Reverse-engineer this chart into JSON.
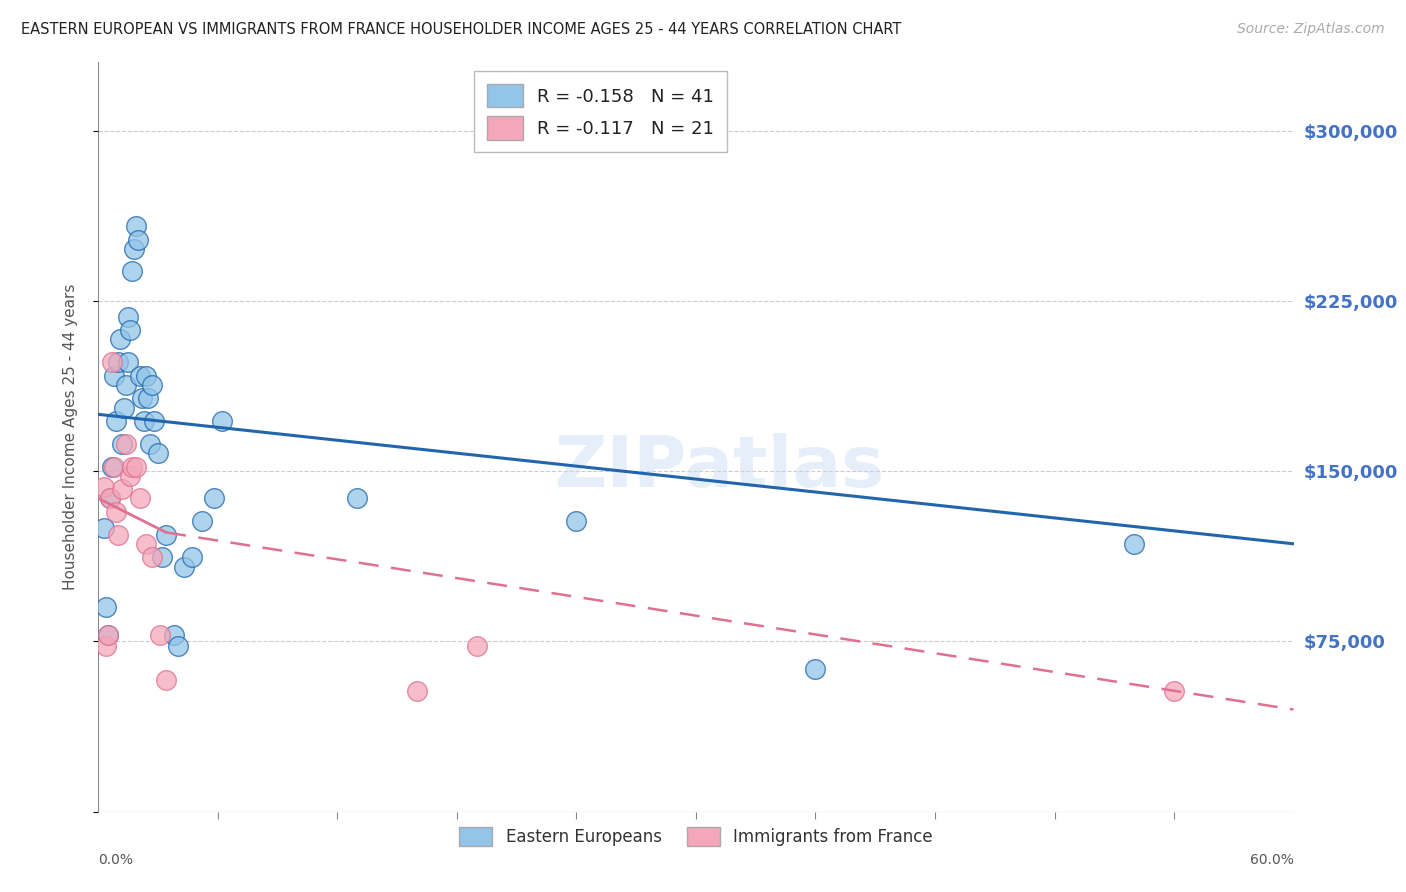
{
  "title": "EASTERN EUROPEAN VS IMMIGRANTS FROM FRANCE HOUSEHOLDER INCOME AGES 25 - 44 YEARS CORRELATION CHART",
  "source": "Source: ZipAtlas.com",
  "ylabel": "Householder Income Ages 25 - 44 years",
  "yticks": [
    0,
    75000,
    150000,
    225000,
    300000
  ],
  "ytick_labels": [
    "",
    "$75,000",
    "$150,000",
    "$225,000",
    "$300,000"
  ],
  "xlim": [
    0.0,
    0.6
  ],
  "ylim": [
    0,
    330000
  ],
  "blue_scatter_x": [
    0.003,
    0.004,
    0.005,
    0.006,
    0.007,
    0.008,
    0.009,
    0.01,
    0.011,
    0.012,
    0.013,
    0.014,
    0.015,
    0.015,
    0.016,
    0.017,
    0.018,
    0.019,
    0.02,
    0.021,
    0.022,
    0.023,
    0.024,
    0.025,
    0.026,
    0.027,
    0.028,
    0.03,
    0.032,
    0.034,
    0.038,
    0.04,
    0.043,
    0.047,
    0.052,
    0.058,
    0.062,
    0.13,
    0.24,
    0.36,
    0.52
  ],
  "blue_scatter_y": [
    125000,
    90000,
    78000,
    138000,
    152000,
    192000,
    172000,
    198000,
    208000,
    162000,
    178000,
    188000,
    198000,
    218000,
    212000,
    238000,
    248000,
    258000,
    252000,
    192000,
    182000,
    172000,
    192000,
    182000,
    162000,
    188000,
    172000,
    158000,
    112000,
    122000,
    78000,
    73000,
    108000,
    112000,
    128000,
    138000,
    172000,
    138000,
    128000,
    63000,
    118000
  ],
  "pink_scatter_x": [
    0.003,
    0.004,
    0.005,
    0.006,
    0.007,
    0.008,
    0.009,
    0.01,
    0.012,
    0.014,
    0.016,
    0.017,
    0.019,
    0.021,
    0.024,
    0.027,
    0.031,
    0.034,
    0.16,
    0.19,
    0.54
  ],
  "pink_scatter_y": [
    143000,
    73000,
    78000,
    138000,
    198000,
    152000,
    132000,
    122000,
    142000,
    162000,
    148000,
    152000,
    152000,
    138000,
    118000,
    112000,
    78000,
    58000,
    53000,
    73000,
    53000
  ],
  "blue_trend_x0": 0.0,
  "blue_trend_x1": 0.6,
  "blue_trend_y0": 175000,
  "blue_trend_y1": 118000,
  "pink_trend_solid_x0": 0.0,
  "pink_trend_solid_x1": 0.034,
  "pink_trend_y0": 138000,
  "pink_trend_y1": 123000,
  "pink_trend_dash_x0": 0.034,
  "pink_trend_dash_x1": 0.6,
  "pink_trend_dash_y0": 123000,
  "pink_trend_dash_y1": 45000,
  "watermark": "ZIPatlas",
  "background_color": "#ffffff",
  "grid_color": "#cccccc",
  "blue_color": "#93c5e8",
  "pink_color": "#f4a7b9",
  "blue_line_color": "#2166ac",
  "pink_line_color": "#e07090",
  "title_color": "#222222",
  "ylabel_color": "#555555",
  "ytick_color": "#4472c4",
  "source_color": "#aaaaaa",
  "xtick_minor_count": 9,
  "legend_top_labels": [
    "R = -0.158   N = 41",
    "R = -0.117   N = 21"
  ],
  "legend_top_colors": [
    "#93c5e8",
    "#f4a7b9"
  ],
  "legend_bottom_labels": [
    "Eastern Europeans",
    "Immigrants from France"
  ],
  "legend_bottom_colors": [
    "#93c5e8",
    "#f4a7b9"
  ]
}
